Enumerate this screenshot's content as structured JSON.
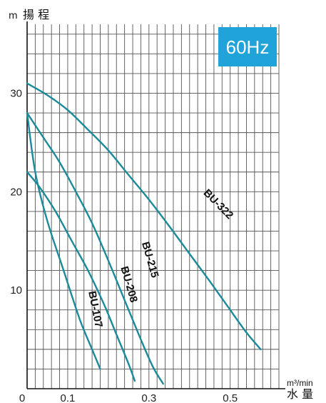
{
  "chart_data": {
    "type": "line",
    "y_unit": "m",
    "y_title": "揚 程",
    "x_unit": "m³/min",
    "x_title": "水 量",
    "frequency_badge": "60Hz",
    "badge_color": "#1fa3d8",
    "curve_color": "#1b8a9a",
    "grid": true,
    "xlim": [
      0,
      0.62
    ],
    "ylim": [
      0,
      37
    ],
    "x_ticks": [
      {
        "value": 0,
        "label": "0"
      },
      {
        "value": 0.1,
        "label": "0.1"
      },
      {
        "value": 0.3,
        "label": "0.3"
      },
      {
        "value": 0.5,
        "label": "0.5"
      }
    ],
    "y_ticks": [
      {
        "value": 10,
        "label": "10"
      },
      {
        "value": 20,
        "label": "20"
      },
      {
        "value": 30,
        "label": "30"
      }
    ],
    "series": [
      {
        "name": "BU-107",
        "label_pos": [
          0.16,
          8.0
        ],
        "label_angle": 79,
        "points": [
          [
            0,
            28
          ],
          [
            0.02,
            22
          ],
          [
            0.05,
            17
          ],
          [
            0.09,
            12
          ],
          [
            0.13,
            7
          ],
          [
            0.16,
            4
          ],
          [
            0.18,
            2
          ]
        ]
      },
      {
        "name": "BU-208",
        "label_pos": [
          0.243,
          10.5
        ],
        "label_angle": 74,
        "points": [
          [
            0,
            22
          ],
          [
            0.03,
            20.5
          ],
          [
            0.07,
            18
          ],
          [
            0.11,
            15
          ],
          [
            0.15,
            12
          ],
          [
            0.19,
            8.5
          ],
          [
            0.22,
            5.5
          ],
          [
            0.25,
            2.5
          ],
          [
            0.265,
            0.8
          ]
        ]
      },
      {
        "name": "BU-215",
        "label_pos": [
          0.295,
          13.0
        ],
        "label_angle": 74,
        "points": [
          [
            0,
            28
          ],
          [
            0.04,
            25.5
          ],
          [
            0.08,
            23
          ],
          [
            0.12,
            20
          ],
          [
            0.16,
            16.8
          ],
          [
            0.2,
            13
          ],
          [
            0.24,
            9
          ],
          [
            0.28,
            5
          ],
          [
            0.31,
            2.2
          ],
          [
            0.335,
            0.5
          ]
        ]
      },
      {
        "name": "BU-322",
        "label_pos": [
          0.465,
          18.5
        ],
        "label_angle": 45,
        "points": [
          [
            0,
            31
          ],
          [
            0.05,
            29.8
          ],
          [
            0.1,
            28.3
          ],
          [
            0.15,
            26.3
          ],
          [
            0.2,
            24.2
          ],
          [
            0.25,
            21.7
          ],
          [
            0.3,
            19.2
          ],
          [
            0.35,
            16.5
          ],
          [
            0.4,
            13.7
          ],
          [
            0.45,
            10.9
          ],
          [
            0.5,
            8.0
          ],
          [
            0.54,
            5.7
          ],
          [
            0.575,
            4.0
          ]
        ]
      }
    ]
  }
}
